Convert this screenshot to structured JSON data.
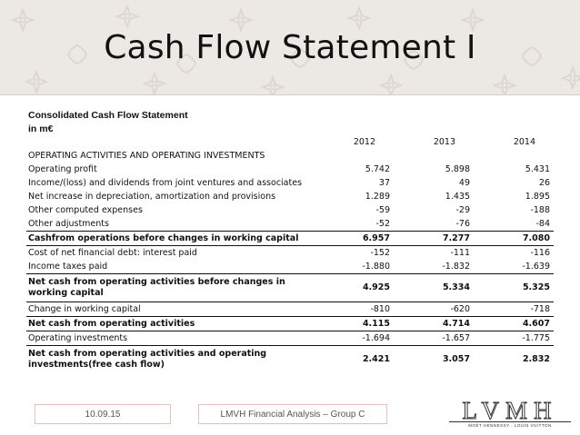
{
  "slide": {
    "title": "Cash Flow Statement I",
    "caption_line1": "Consolidated Cash Flow Statement",
    "caption_line2": "in m€"
  },
  "table": {
    "years": [
      "2012",
      "2013",
      "2014"
    ],
    "rows": [
      {
        "label": "OPERATING ACTIVITIES AND OPERATING INVESTMENTS",
        "values": [
          "",
          "",
          ""
        ]
      },
      {
        "label": "Operating profit",
        "values": [
          "5.742",
          "5.898",
          "5.431"
        ]
      },
      {
        "label": "Income/(loss) and dividends from joint ventures and associates",
        "values": [
          "37",
          "49",
          "26"
        ]
      },
      {
        "label": "Net increase in depreciation, amortization and provisions",
        "values": [
          "1.289",
          "1.435",
          "1.895"
        ]
      },
      {
        "label": "Other computed expenses",
        "values": [
          "-59",
          "-29",
          "-188"
        ]
      },
      {
        "label": "Other adjustments",
        "values": [
          "-52",
          "-76",
          "-84"
        ]
      },
      {
        "label": "Cashfrom operations before changes in working capital",
        "values": [
          "6.957",
          "7.277",
          "7.080"
        ]
      },
      {
        "label": "Cost of net financial debt: interest paid",
        "values": [
          "-152",
          "-111",
          "-116"
        ]
      },
      {
        "label": "Income taxes paid",
        "values": [
          "-1.880",
          "-1.832",
          "-1.639"
        ]
      },
      {
        "label": "Net cash from operating activities before changes in working capital",
        "values": [
          "4.925",
          "5.334",
          "5.325"
        ]
      },
      {
        "label": "Change in working capital",
        "values": [
          "-810",
          "-620",
          "-718"
        ]
      },
      {
        "label": "Net cash from operating activities",
        "values": [
          "4.115",
          "4.714",
          "4.607"
        ]
      },
      {
        "label": "Operating investments",
        "values": [
          "-1.694",
          "-1.657",
          "-1.775"
        ]
      },
      {
        "label": "Net cash from operating activities and operating investments(free cash flow)",
        "values": [
          "2.421",
          "3.057",
          "2.832"
        ]
      }
    ]
  },
  "footer": {
    "date": "10.09.15",
    "subtitle": "LMVH Financial Analysis – Group C",
    "logo_text": "LVMH",
    "logo_subtext": "MOËT HENNESSY . LOUIS VUITTON"
  },
  "colors": {
    "header_background": "#ece9e4",
    "footer_border": "#e3c3b8"
  }
}
